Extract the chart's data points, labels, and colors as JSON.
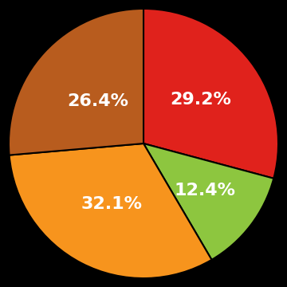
{
  "values": [
    29.2,
    12.4,
    32.1,
    26.4
  ],
  "labels": [
    "29.2%",
    "12.4%",
    "32.1%",
    "26.4%"
  ],
  "colors": [
    "#e0221c",
    "#8dc63f",
    "#f7941d",
    "#b85c1e"
  ],
  "background_color": "#000000",
  "text_color": "#ffffff",
  "text_fontsize": 16,
  "startangle": 90,
  "label_radii": [
    0.58,
    0.62,
    0.55,
    0.5
  ]
}
